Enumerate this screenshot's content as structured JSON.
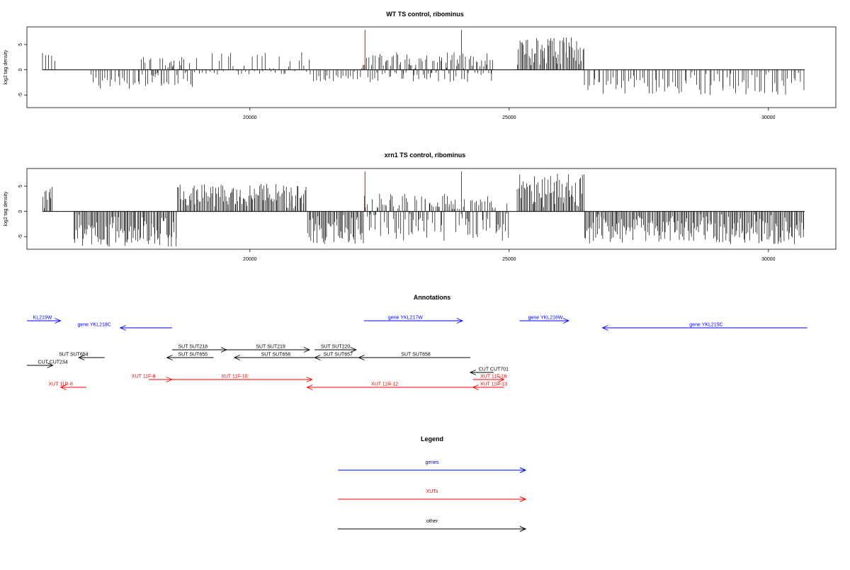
{
  "chart_data": [
    {
      "type": "bar",
      "title": "WT TS control, ribominus",
      "ylabel": "log2 tag density",
      "xlim": [
        15700,
        31300
      ],
      "ylim": [
        -7.5,
        8.5
      ],
      "x_ticks": [
        20000,
        25000,
        30000
      ],
      "y_ticks": [
        -5,
        0,
        5
      ],
      "y_tick_labels": [
        "-5",
        "0",
        "5"
      ],
      "x_tick_labels": [
        "20000",
        "25000",
        "30000"
      ],
      "grid": false,
      "red_markers_x": [
        22220,
        24080
      ],
      "regions": [
        {
          "start": 16000,
          "end": 16250,
          "lo": 0,
          "hi": 3.5
        },
        {
          "start": 16900,
          "end": 17900,
          "lo": -4.0,
          "hi": 0
        },
        {
          "start": 17900,
          "end": 18900,
          "lo": -3.5,
          "hi": 2.5
        },
        {
          "start": 18900,
          "end": 21200,
          "lo": -1.0,
          "hi": 3.5
        },
        {
          "start": 21200,
          "end": 22150,
          "lo": -2.5,
          "hi": 0.5
        },
        {
          "start": 22150,
          "end": 24700,
          "lo": -2.5,
          "hi": 3.5
        },
        {
          "start": 25150,
          "end": 26450,
          "lo": 0,
          "hi": 6.5
        },
        {
          "start": 26450,
          "end": 30700,
          "lo": -5.0,
          "hi": 0
        }
      ]
    },
    {
      "type": "bar",
      "title": "xrn1 TS control, ribominus",
      "ylabel": "log2 tag density",
      "xlim": [
        15700,
        31300
      ],
      "ylim": [
        -7.5,
        8.5
      ],
      "x_ticks": [
        20000,
        25000,
        30000
      ],
      "y_ticks": [
        -5,
        0,
        5
      ],
      "y_tick_labels": [
        "-5",
        "0",
        "5"
      ],
      "x_tick_labels": [
        "20000",
        "25000",
        "30000"
      ],
      "grid": false,
      "red_markers_x": [
        22220,
        24080
      ],
      "regions": [
        {
          "start": 16000,
          "end": 16200,
          "lo": 0,
          "hi": 5.5
        },
        {
          "start": 16600,
          "end": 18600,
          "lo": -7.0,
          "hi": 0
        },
        {
          "start": 18600,
          "end": 21100,
          "lo": 0,
          "hi": 5.5
        },
        {
          "start": 21100,
          "end": 22200,
          "lo": -6.5,
          "hi": 0
        },
        {
          "start": 22200,
          "end": 25000,
          "lo": -6.0,
          "hi": 3.5
        },
        {
          "start": 25150,
          "end": 26450,
          "lo": 0,
          "hi": 7.5
        },
        {
          "start": 26450,
          "end": 30700,
          "lo": -6.5,
          "hi": 0.5
        }
      ]
    }
  ],
  "annotations": {
    "title": "Annotations",
    "features": [
      {
        "label": "KL219W",
        "start": 15700,
        "end": 16350,
        "dir": 1,
        "color": "#0000ff",
        "row": 0,
        "label_x": 16000
      },
      {
        "label": "gene YKL218C",
        "start": 17500,
        "end": 18500,
        "dir": -1,
        "color": "#0000ff",
        "row": 1,
        "label_x": 17000
      },
      {
        "label": "gene YKL217W",
        "start": 22200,
        "end": 24100,
        "dir": 1,
        "color": "#0000ff",
        "row": 0,
        "label_x": 23000
      },
      {
        "label": "gene YKL216W",
        "start": 25200,
        "end": 26150,
        "dir": 1,
        "color": "#0000ff",
        "row": 0,
        "label_x": 25700
      },
      {
        "label": "gene YKL215C",
        "start": 26800,
        "end": 30750,
        "dir": -1,
        "color": "#0000ff",
        "row": 1,
        "label_x": 28800
      },
      {
        "label": "SUT SUT218",
        "start": 18500,
        "end": 19550,
        "dir": 1,
        "color": "#000000",
        "row": 2,
        "label_x": 18900
      },
      {
        "label": "SUT SUT219",
        "start": 19550,
        "end": 21150,
        "dir": 1,
        "color": "#000000",
        "row": 2,
        "label_x": 20400
      },
      {
        "label": "SUT SUT220",
        "start": 21250,
        "end": 22050,
        "dir": 1,
        "color": "#000000",
        "row": 2,
        "label_x": 21650
      },
      {
        "label": "SUT SUT654",
        "start": 16700,
        "end": 17200,
        "dir": -1,
        "color": "#000000",
        "row": 3,
        "label_x": 16600
      },
      {
        "label": "SUT SUT655",
        "start": 18400,
        "end": 19300,
        "dir": -1,
        "color": "#000000",
        "row": 3,
        "label_x": 18900
      },
      {
        "label": "SUT SUT656",
        "start": 19700,
        "end": 21250,
        "dir": -1,
        "color": "#000000",
        "row": 3,
        "label_x": 20500
      },
      {
        "label": "SUT SUT657",
        "start": 21250,
        "end": 22100,
        "dir": -1,
        "color": "#000000",
        "row": 3,
        "label_x": 21700
      },
      {
        "label": "SUT SUT658",
        "start": 22100,
        "end": 24250,
        "dir": -1,
        "color": "#000000",
        "row": 3,
        "label_x": 23200
      },
      {
        "label": "CUT CUT234",
        "start": 15700,
        "end": 16200,
        "dir": 1,
        "color": "#000000",
        "row": 4,
        "label_x": 16200
      },
      {
        "label": "CUT CUT701",
        "start": 24250,
        "end": 24700,
        "dir": -1,
        "color": "#000000",
        "row": 5,
        "label_x": 24700
      },
      {
        "label": "XUT 11F-8",
        "start": 18050,
        "end": 18500,
        "dir": 1,
        "color": "#ff0000",
        "row": 6,
        "label_x": 17950
      },
      {
        "label": "XUT 11F-10",
        "start": 18500,
        "end": 21200,
        "dir": 1,
        "color": "#ff0000",
        "row": 6,
        "label_x": 19700
      },
      {
        "label": "XUT 11F-16",
        "start": 24300,
        "end": 24900,
        "dir": 1,
        "color": "#ff0000",
        "row": 6,
        "label_x": 24700
      },
      {
        "label": "XUT 11R-8",
        "start": 16350,
        "end": 16850,
        "dir": -1,
        "color": "#ff0000",
        "row": 7,
        "label_x": 16350
      },
      {
        "label": "XUT 11R-12",
        "start": 21100,
        "end": 24300,
        "dir": -1,
        "color": "#ff0000",
        "row": 7,
        "label_x": 22600
      },
      {
        "label": "XUT 11R-13",
        "start": 24300,
        "end": 24900,
        "dir": -1,
        "color": "#ff0000",
        "row": 7,
        "label_x": 24700
      }
    ]
  },
  "legend": {
    "title": "Legend",
    "items": [
      {
        "label": "genes",
        "color": "#0000ff"
      },
      {
        "label": "XUTs",
        "color": "#ff0000"
      },
      {
        "label": "other",
        "color": "#000000"
      }
    ]
  }
}
